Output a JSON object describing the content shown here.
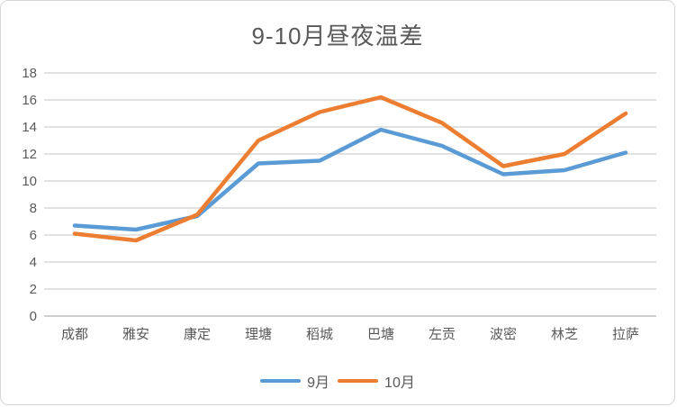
{
  "window": {
    "background": "#ffffff",
    "border_color": "#d6d6d6"
  },
  "chart_data": {
    "type": "line",
    "title": "9-10月昼夜温差",
    "categories": [
      "成都",
      "雅安",
      "康定",
      "理塘",
      "稻城",
      "巴塘",
      "左贡",
      "波密",
      "林芝",
      "拉萨"
    ],
    "series": [
      {
        "name": "9月",
        "color": "#5B9BD5",
        "values": [
          6.7,
          6.4,
          7.4,
          11.3,
          11.5,
          13.8,
          12.6,
          10.5,
          10.8,
          12.1
        ]
      },
      {
        "name": "10月",
        "color": "#ED7D31",
        "values": [
          6.1,
          5.6,
          7.5,
          13.0,
          15.1,
          16.2,
          14.3,
          11.1,
          12.0,
          15.0
        ]
      }
    ],
    "xlabel": "",
    "ylabel": "",
    "ylim": [
      0,
      18
    ],
    "yticks": [
      0,
      2,
      4,
      6,
      8,
      10,
      12,
      14,
      16,
      18
    ],
    "grid": true,
    "legend_position": "bottom",
    "gridline_color": "#D9D9D9",
    "axisline_color": "#BFBFBF",
    "text_color": "#595959",
    "line_width": 4.5
  }
}
